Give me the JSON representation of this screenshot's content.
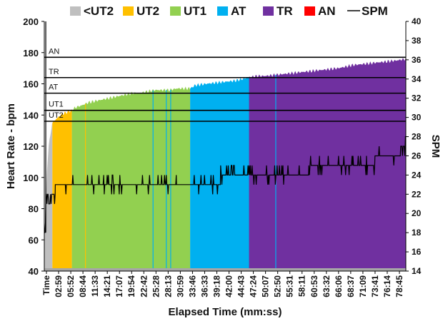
{
  "chart_data": {
    "type": "area",
    "xlabel": "Elapsed Time (mm:ss)",
    "ylabel": "Heart Rate - bpm",
    "y2label": "SPM",
    "ylim": [
      40,
      200
    ],
    "y2lim": [
      14,
      40
    ],
    "yticks": [
      "40",
      "60",
      "80",
      "100",
      "120",
      "140",
      "160",
      "180",
      "200"
    ],
    "y2ticks": [
      "14",
      "16",
      "18",
      "20",
      "22",
      "24",
      "26",
      "28",
      "30",
      "32",
      "34",
      "36",
      "38",
      "40"
    ],
    "xlim_seconds": [
      0,
      4920
    ],
    "xtick_labels": [
      "Time",
      "02:59",
      "05:52",
      "08:44",
      "11:33",
      "14:21",
      "17:07",
      "19:54",
      "22:42",
      "25:28",
      "28:13",
      "30:59",
      "33:46",
      "36:33",
      "39:18",
      "42:00",
      "44:43",
      "47:24",
      "50:07",
      "52:50",
      "55:31",
      "58:11",
      "60:53",
      "63:32",
      "66:06",
      "68:37",
      "71:09",
      "73:41",
      "76:14",
      "78:45"
    ],
    "legend": [
      {
        "name": "<UT2",
        "color": "#bfbfbf",
        "kind": "box"
      },
      {
        "name": "UT2",
        "color": "#ffc000",
        "kind": "box"
      },
      {
        "name": "UT1",
        "color": "#92d050",
        "kind": "box"
      },
      {
        "name": "AT",
        "color": "#00b0f0",
        "kind": "box"
      },
      {
        "name": "TR",
        "color": "#7030a0",
        "kind": "box"
      },
      {
        "name": "AN",
        "color": "#ff0000",
        "kind": "box"
      },
      {
        "name": "SPM",
        "color": "#000000",
        "kind": "line"
      }
    ],
    "zones": [
      {
        "name": "AN",
        "threshold": 177
      },
      {
        "name": "TR",
        "threshold": 164
      },
      {
        "name": "AT",
        "threshold": 154
      },
      {
        "name": "UT1",
        "threshold": 143
      },
      {
        "name": "UT2",
        "threshold": 136
      }
    ],
    "zone_segments": [
      {
        "zone": "<UT2",
        "from": 0,
        "to": 110,
        "color": "#bfbfbf"
      },
      {
        "zone": "UT2",
        "from": 110,
        "to": 375,
        "color": "#ffc000"
      },
      {
        "zone": "UT1",
        "from": 375,
        "to": 1985,
        "color": "#92d050"
      },
      {
        "zone": "AT",
        "from": 1985,
        "to": 2780,
        "color": "#00b0f0"
      },
      {
        "zone": "TR",
        "from": 2780,
        "to": 4920,
        "color": "#7030a0"
      }
    ],
    "series": [
      {
        "name": "Heart Rate",
        "axis": "left",
        "x": [
          0,
          30,
          60,
          90,
          110,
          150,
          200,
          260,
          320,
          375,
          430,
          500,
          600,
          700,
          800,
          900,
          1000,
          1100,
          1200,
          1300,
          1400,
          1500,
          1600,
          1700,
          1800,
          1900,
          1985,
          2050,
          2200,
          2400,
          2600,
          2780,
          2900,
          3000,
          3200,
          3400,
          3600,
          3800,
          4000,
          4200,
          4400,
          4600,
          4800,
          4920
        ],
        "values": [
          58,
          100,
          120,
          130,
          135,
          137,
          139,
          141,
          142,
          143,
          145,
          146,
          148,
          149,
          150,
          151,
          152,
          153,
          154,
          154,
          155,
          156,
          156,
          156,
          157,
          157,
          157,
          159,
          160,
          161,
          162,
          164,
          165,
          165,
          166,
          167,
          168,
          169,
          170,
          172,
          173,
          174,
          175,
          176
        ]
      },
      {
        "name": "SPM",
        "axis": "right",
        "x": [
          0,
          20,
          60,
          100,
          150,
          300,
          600,
          900,
          1200,
          1500,
          1800,
          2100,
          2400,
          2700,
          3000,
          3300,
          3600,
          3900,
          4200,
          4500,
          4700,
          4850,
          4920
        ],
        "values": [
          18,
          22,
          21,
          22,
          23,
          23,
          23,
          23,
          23,
          23,
          23,
          23,
          24,
          24,
          24,
          24,
          25,
          25,
          25,
          26,
          26,
          27,
          28
        ]
      }
    ]
  }
}
